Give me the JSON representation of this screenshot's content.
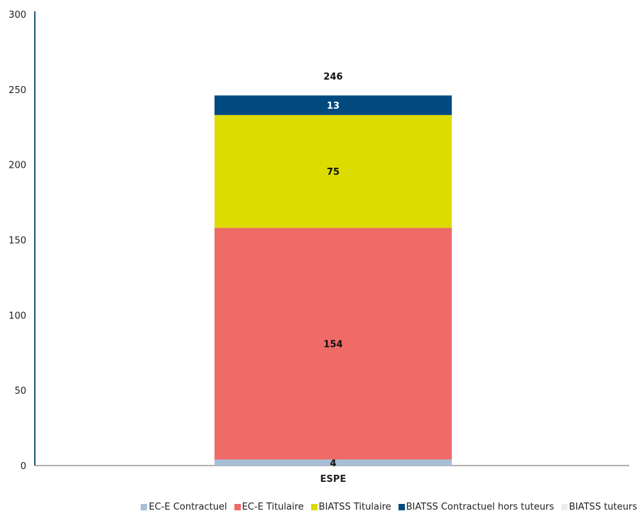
{
  "chart_data": {
    "type": "bar",
    "stacked": true,
    "categories": [
      "ESPE"
    ],
    "series": [
      {
        "name": "EC-E Contractuel",
        "values": [
          4
        ],
        "color": "#a8bfd8",
        "label_color": "#111111"
      },
      {
        "name": "EC-E Titulaire",
        "values": [
          154
        ],
        "color": "#ef6b68",
        "label_color": "#111111"
      },
      {
        "name": "BIATSS Titulaire",
        "values": [
          75
        ],
        "color": "#dcdc00",
        "label_color": "#111111"
      },
      {
        "name": "BIATSS Contractuel hors tuteurs",
        "values": [
          13
        ],
        "color": "#004a7f",
        "label_color": "#ffffff"
      },
      {
        "name": "BIATSS tuteurs",
        "values": [
          0
        ],
        "color": "#ececec",
        "label_color": "#111111"
      }
    ],
    "totals": [
      246
    ],
    "y_ticks": [
      0,
      50,
      100,
      150,
      200,
      250,
      300
    ],
    "ylim": [
      0,
      300
    ],
    "grid": false,
    "legend_position": "bottom-right",
    "axis_color": "#1f5a85"
  }
}
